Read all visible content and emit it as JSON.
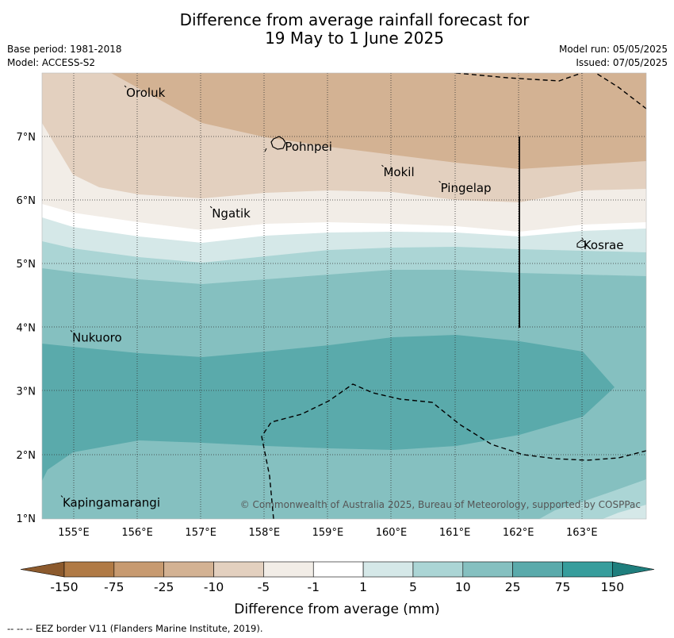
{
  "title_line1": "Difference from average rainfall forecast for",
  "title_line2": "19 May to 1 June 2025",
  "base_period": "Base period: 1981-2018",
  "model": "Model: ACCESS-S2",
  "model_run": "Model run: 05/05/2025",
  "issued": "Issued: 07/05/2025",
  "copyright": "© Commonwealth of Australia 2025, Bureau of Meteorology, supported by COSPPac",
  "footer_note": "--  --  -- EEZ border V11 (Flanders Marine Institute, 2019).",
  "colorbar_label": "Difference from average (mm)",
  "map": {
    "lon_ticks": [
      "155°E",
      "156°E",
      "157°E",
      "158°E",
      "159°E",
      "160°E",
      "161°E",
      "162°E",
      "163°E"
    ],
    "lat_ticks": [
      "1°N",
      "2°N",
      "3°N",
      "4°N",
      "5°N",
      "6°N",
      "7°N"
    ],
    "places": [
      {
        "name": "Oroluk",
        "lon": 155.8,
        "lat": 7.7
      },
      {
        "name": "Pohnpei",
        "lon": 158.3,
        "lat": 6.85
      },
      {
        "name": "Mokil",
        "lon": 159.85,
        "lat": 6.45
      },
      {
        "name": "Pingelap",
        "lon": 160.75,
        "lat": 6.2
      },
      {
        "name": "Ngatik",
        "lon": 157.15,
        "lat": 5.8
      },
      {
        "name": "Kosrae",
        "lon": 163.0,
        "lat": 5.3
      },
      {
        "name": "Nukuoro",
        "lon": 154.95,
        "lat": 3.85
      },
      {
        "name": "Kapingamarangi",
        "lon": 154.8,
        "lat": 1.25
      }
    ]
  },
  "colorbar": {
    "tick_labels": [
      "-150",
      "-75",
      "-25",
      "-10",
      "-5",
      "-1",
      "1",
      "5",
      "10",
      "25",
      "75",
      "150"
    ],
    "colors": [
      "#8c5a2d",
      "#b07a45",
      "#c79a70",
      "#d3b293",
      "#e3d0bf",
      "#f2ede7",
      "#ffffff",
      "#d5e8e8",
      "#abd5d5",
      "#85c0c0",
      "#5aaaab",
      "#379d9c",
      "#1f7e7d"
    ]
  }
}
